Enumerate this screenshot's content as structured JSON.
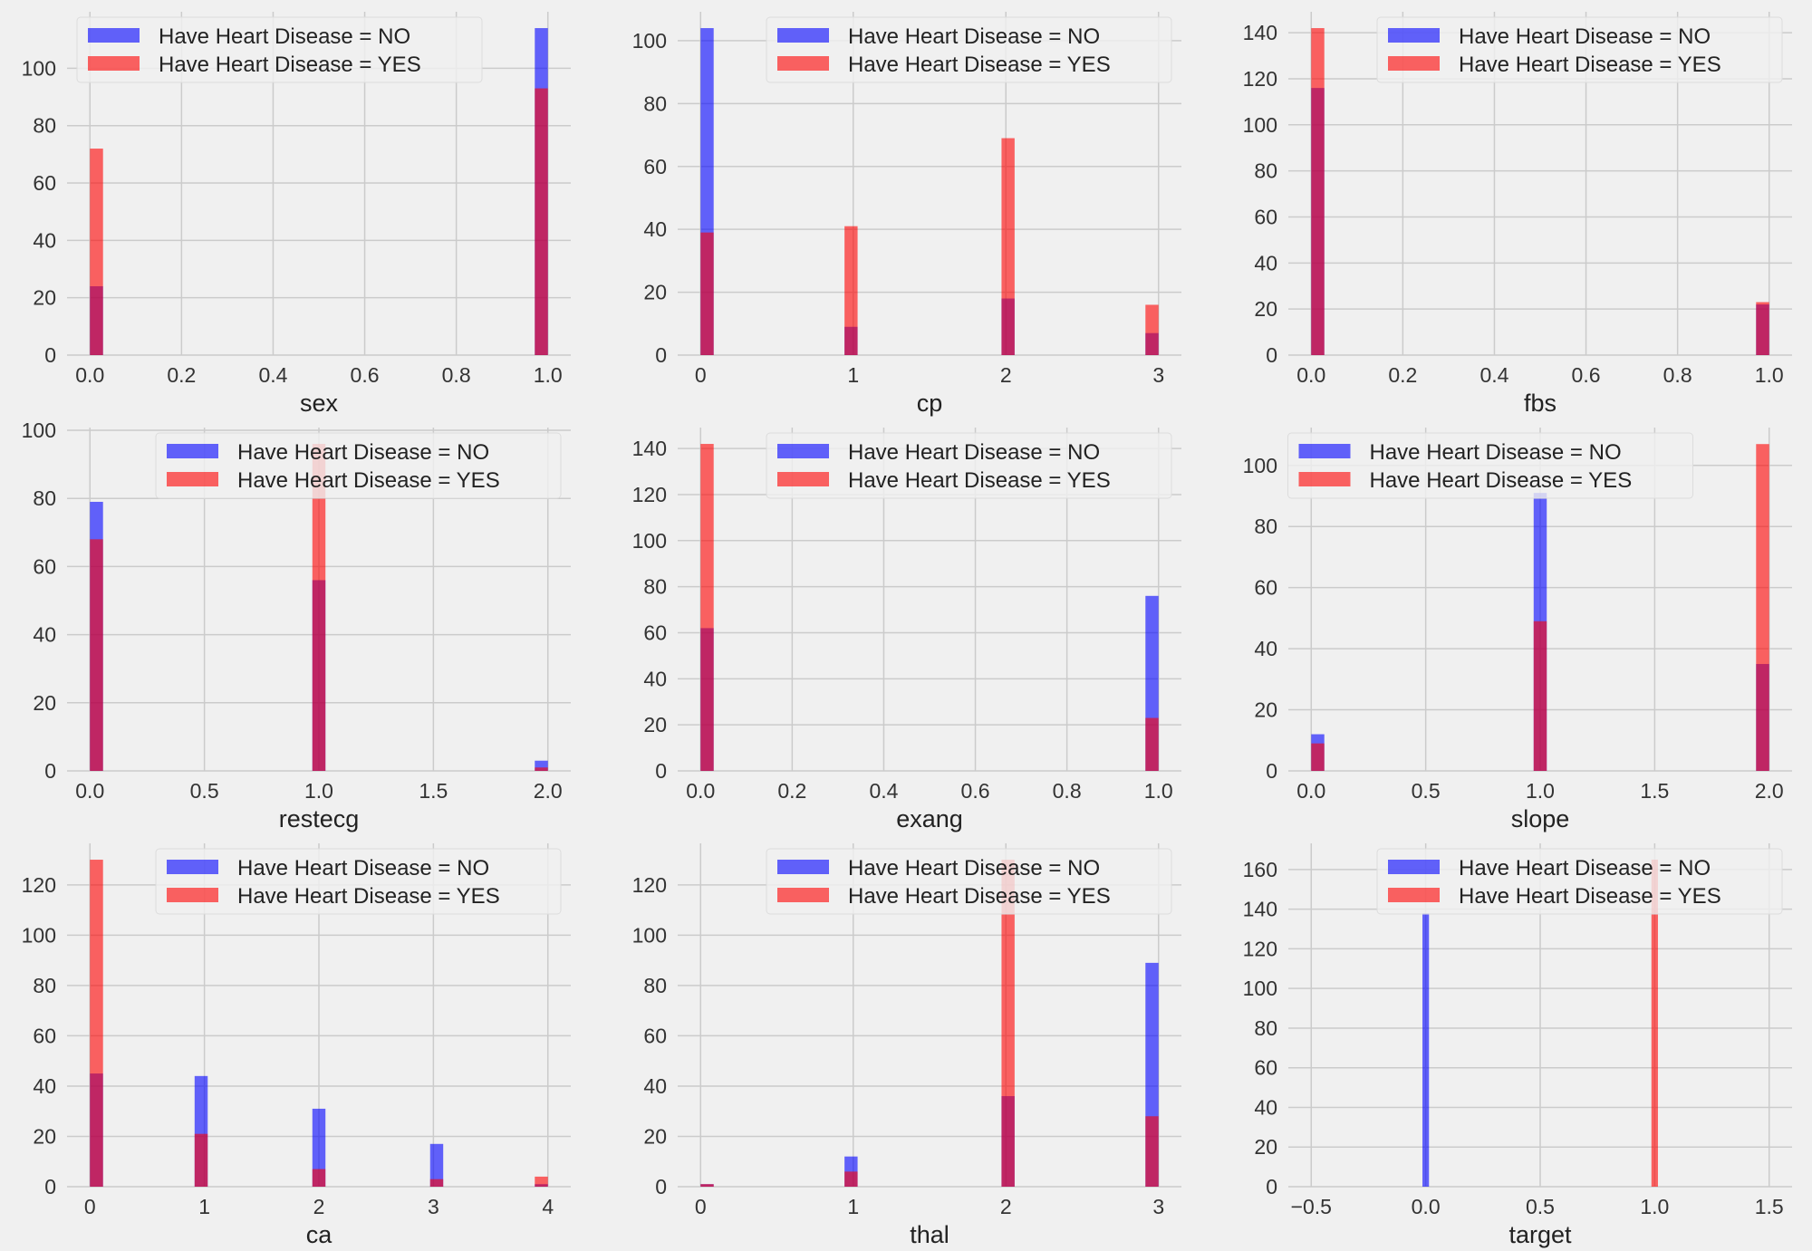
{
  "colors": {
    "no": "#0000ff",
    "yes": "#ff0000",
    "background": "#f0f0f0",
    "grid": "#cbcbcb"
  },
  "legend_labels": [
    "Have Heart Disease = NO",
    "Have Heart Disease = YES"
  ],
  "chart_data": [
    {
      "type": "bar",
      "title": "",
      "xlabel": "sex",
      "ylabel": "",
      "bins": 35,
      "xlim": [
        -0.05,
        1.05
      ],
      "ylim": [
        0,
        119.7
      ],
      "grid": true,
      "legend": "upper-left",
      "xticks": [
        0,
        0.2,
        0.4,
        0.6,
        0.8,
        1.0
      ],
      "xtick_labels": [
        "0.0",
        "0.2",
        "0.4",
        "0.6",
        "0.8",
        "1.0"
      ],
      "yticks": [
        0,
        20,
        40,
        60,
        80,
        100
      ],
      "series": [
        {
          "name": "Have Heart Disease = NO",
          "x": [
            0,
            1
          ],
          "values": [
            24,
            114
          ]
        },
        {
          "name": "Have Heart Disease = YES",
          "x": [
            0,
            1
          ],
          "values": [
            72,
            93
          ]
        }
      ]
    },
    {
      "type": "bar",
      "title": "",
      "xlabel": "cp",
      "ylabel": "",
      "bins": 35,
      "xlim": [
        -0.15,
        3.15
      ],
      "ylim": [
        0,
        109.2
      ],
      "grid": true,
      "legend": "upper-right",
      "xticks": [
        0,
        1,
        2,
        3
      ],
      "xtick_labels": [
        "0",
        "1",
        "2",
        "3"
      ],
      "yticks": [
        0,
        20,
        40,
        60,
        80,
        100
      ],
      "series": [
        {
          "name": "Have Heart Disease = NO",
          "x": [
            0,
            1,
            2,
            3
          ],
          "values": [
            104,
            9,
            18,
            7
          ]
        },
        {
          "name": "Have Heart Disease = YES",
          "x": [
            0,
            1,
            2,
            3
          ],
          "values": [
            39,
            41,
            69,
            16
          ]
        }
      ]
    },
    {
      "type": "bar",
      "title": "",
      "xlabel": "fbs",
      "ylabel": "",
      "bins": 35,
      "xlim": [
        -0.05,
        1.05
      ],
      "ylim": [
        0,
        149.1
      ],
      "grid": true,
      "legend": "upper-right",
      "xticks": [
        0,
        0.2,
        0.4,
        0.6,
        0.8,
        1.0
      ],
      "xtick_labels": [
        "0.0",
        "0.2",
        "0.4",
        "0.6",
        "0.8",
        "1.0"
      ],
      "yticks": [
        0,
        20,
        40,
        60,
        80,
        100,
        120,
        140
      ],
      "series": [
        {
          "name": "Have Heart Disease = NO",
          "x": [
            0,
            1
          ],
          "values": [
            116,
            22
          ]
        },
        {
          "name": "Have Heart Disease = YES",
          "x": [
            0,
            1
          ],
          "values": [
            142,
            23
          ]
        }
      ]
    },
    {
      "type": "bar",
      "title": "",
      "xlabel": "restecg",
      "ylabel": "",
      "bins": 35,
      "xlim": [
        -0.1,
        2.1
      ],
      "ylim": [
        0,
        100.8
      ],
      "grid": true,
      "legend": "upper-right",
      "xticks": [
        0,
        0.5,
        1,
        1.5,
        2
      ],
      "xtick_labels": [
        "0.0",
        "0.5",
        "1.0",
        "1.5",
        "2.0"
      ],
      "yticks": [
        0,
        20,
        40,
        60,
        80,
        100
      ],
      "series": [
        {
          "name": "Have Heart Disease = NO",
          "x": [
            0,
            1,
            2
          ],
          "values": [
            79,
            56,
            3
          ]
        },
        {
          "name": "Have Heart Disease = YES",
          "x": [
            0,
            1,
            2
          ],
          "values": [
            68,
            96,
            1
          ]
        }
      ]
    },
    {
      "type": "bar",
      "title": "",
      "xlabel": "exang",
      "ylabel": "",
      "bins": 35,
      "xlim": [
        -0.05,
        1.05
      ],
      "ylim": [
        0,
        149.1
      ],
      "grid": true,
      "legend": "upper-right",
      "xticks": [
        0,
        0.2,
        0.4,
        0.6,
        0.8,
        1.0
      ],
      "xtick_labels": [
        "0.0",
        "0.2",
        "0.4",
        "0.6",
        "0.8",
        "1.0"
      ],
      "yticks": [
        0,
        20,
        40,
        60,
        80,
        100,
        120,
        140
      ],
      "series": [
        {
          "name": "Have Heart Disease = NO",
          "x": [
            0,
            1
          ],
          "values": [
            62,
            76
          ]
        },
        {
          "name": "Have Heart Disease = YES",
          "x": [
            0,
            1
          ],
          "values": [
            142,
            23
          ]
        }
      ]
    },
    {
      "type": "bar",
      "title": "",
      "xlabel": "slope",
      "ylabel": "",
      "bins": 35,
      "xlim": [
        -0.1,
        2.1
      ],
      "ylim": [
        0,
        112.4
      ],
      "grid": true,
      "legend": "upper-center",
      "xticks": [
        0,
        0.5,
        1,
        1.5,
        2
      ],
      "xtick_labels": [
        "0.0",
        "0.5",
        "1.0",
        "1.5",
        "2.0"
      ],
      "yticks": [
        0,
        20,
        40,
        60,
        80,
        100
      ],
      "series": [
        {
          "name": "Have Heart Disease = NO",
          "x": [
            0,
            1,
            2
          ],
          "values": [
            12,
            91,
            35
          ]
        },
        {
          "name": "Have Heart Disease = YES",
          "x": [
            0,
            1,
            2
          ],
          "values": [
            9,
            49,
            107
          ]
        }
      ]
    },
    {
      "type": "bar",
      "title": "",
      "xlabel": "ca",
      "ylabel": "",
      "bins": 35,
      "xlim": [
        -0.2,
        4.2
      ],
      "ylim": [
        0,
        136.5
      ],
      "grid": true,
      "legend": "upper-right",
      "xticks": [
        0,
        1,
        2,
        3,
        4
      ],
      "xtick_labels": [
        "0",
        "1",
        "2",
        "3",
        "4"
      ],
      "yticks": [
        0,
        20,
        40,
        60,
        80,
        100,
        120
      ],
      "series": [
        {
          "name": "Have Heart Disease = NO",
          "x": [
            0,
            1,
            2,
            3,
            4
          ],
          "values": [
            45,
            44,
            31,
            17,
            1
          ]
        },
        {
          "name": "Have Heart Disease = YES",
          "x": [
            0,
            1,
            2,
            3,
            4
          ],
          "values": [
            130,
            21,
            7,
            3,
            4
          ]
        }
      ]
    },
    {
      "type": "bar",
      "title": "",
      "xlabel": "thal",
      "ylabel": "",
      "bins": 35,
      "xlim": [
        -0.15,
        3.15
      ],
      "ylim": [
        0,
        136.5
      ],
      "grid": true,
      "legend": "upper-right",
      "xticks": [
        0,
        1,
        2,
        3
      ],
      "xtick_labels": [
        "0",
        "1",
        "2",
        "3"
      ],
      "yticks": [
        0,
        20,
        40,
        60,
        80,
        100,
        120
      ],
      "series": [
        {
          "name": "Have Heart Disease = NO",
          "x": [
            0,
            1,
            2,
            3
          ],
          "values": [
            1,
            12,
            36,
            89
          ]
        },
        {
          "name": "Have Heart Disease = YES",
          "x": [
            0,
            1,
            2,
            3
          ],
          "values": [
            1,
            6,
            130,
            28
          ]
        }
      ]
    },
    {
      "type": "bar",
      "title": "",
      "xlabel": "target",
      "ylabel": "",
      "bins": 35,
      "xlim": [
        -0.6,
        1.6
      ],
      "ylim": [
        0,
        173.2
      ],
      "grid": true,
      "legend": "upper-right",
      "xticks": [
        -0.5,
        0,
        0.5,
        1,
        1.5
      ],
      "xtick_labels": [
        "−0.5",
        "0.0",
        "0.5",
        "1.0",
        "1.5"
      ],
      "yticks": [
        0,
        20,
        40,
        60,
        80,
        100,
        120,
        140,
        160
      ],
      "series": [
        {
          "name": "Have Heart Disease = NO",
          "x": [
            0
          ],
          "values": [
            138
          ]
        },
        {
          "name": "Have Heart Disease = YES",
          "x": [
            1
          ],
          "values": [
            165
          ]
        }
      ]
    }
  ]
}
